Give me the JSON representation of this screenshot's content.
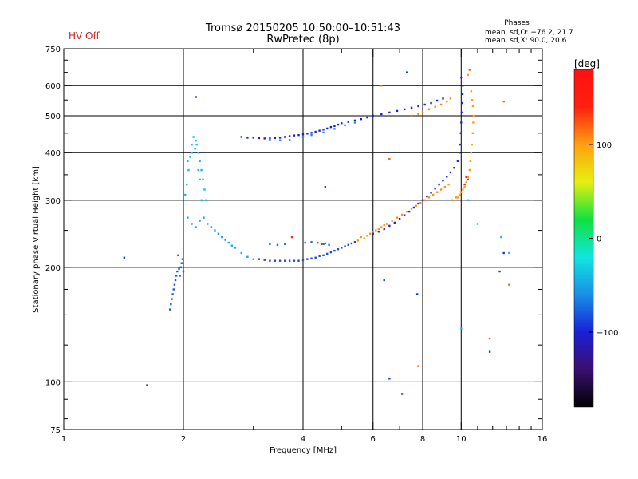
{
  "chart_data": {
    "type": "scatter",
    "title_line1": "Tromsø 20150205 10:50:00–10:51:43",
    "title_line2": "RwPretec (8p)",
    "status_label": "HV Off",
    "stats_header": "Phases",
    "stats_line1": "mean, sd,O: −76.2, 21.7",
    "stats_line2": "mean, sd,X:  90.0, 20.6",
    "xlabel": "Frequency [MHz]",
    "ylabel": "Stationary phase Virtual Height [km]",
    "x_scale": "log",
    "y_scale": "log",
    "xlim": [
      1,
      16
    ],
    "ylim": [
      75,
      750
    ],
    "x_ticks": [
      {
        "value": 1,
        "label": "1"
      },
      {
        "value": 2,
        "label": "2"
      },
      {
        "value": 4,
        "label": "4"
      },
      {
        "value": 6,
        "label": "6"
      },
      {
        "value": 8,
        "label": "8"
      },
      {
        "value": 10,
        "label": "10"
      },
      {
        "value": 16,
        "label": "16"
      }
    ],
    "x_grid": [
      2,
      4,
      6,
      8,
      10
    ],
    "y_ticks": [
      {
        "value": 75,
        "label": "75"
      },
      {
        "value": 100,
        "label": "100"
      },
      {
        "value": 200,
        "label": "200"
      },
      {
        "value": 300,
        "label": "300"
      },
      {
        "value": 400,
        "label": "400"
      },
      {
        "value": 500,
        "label": "500"
      },
      {
        "value": 600,
        "label": "600"
      },
      {
        "value": 750,
        "label": "750"
      }
    ],
    "y_grid": [
      100,
      200,
      300,
      400,
      500,
      600
    ],
    "colorbar": {
      "label": "[deg]",
      "range": [
        -180,
        180
      ],
      "ticks": [
        {
          "value": 100,
          "label": "100"
        },
        {
          "value": 0,
          "label": "0"
        },
        {
          "value": -100,
          "label": "−100"
        }
      ]
    },
    "colors": {
      "status": "#cc2222",
      "grid": "#000000",
      "cb_stops": [
        "#000000",
        "#3a0f6e",
        "#1a1fd6",
        "#1a8fe6",
        "#10e6e0",
        "#10e040",
        "#e6f010",
        "#ffa010",
        "#ff2010",
        "#ff1010"
      ]
    },
    "series": [
      {
        "phase": -80,
        "points": [
          [
            1.85,
            155
          ],
          [
            1.86,
            160
          ],
          [
            1.87,
            165
          ],
          [
            1.88,
            170
          ],
          [
            1.89,
            175
          ],
          [
            1.9,
            180
          ],
          [
            1.91,
            185
          ],
          [
            1.92,
            190
          ],
          [
            1.93,
            195
          ],
          [
            1.95,
            198
          ],
          [
            1.97,
            200
          ],
          [
            1.98,
            205
          ],
          [
            2.0,
            195
          ],
          [
            1.99,
            210
          ],
          [
            1.94,
            215
          ],
          [
            1.96,
            190
          ]
        ]
      },
      {
        "phase": -40,
        "points": [
          [
            2.02,
            310
          ],
          [
            2.04,
            330
          ],
          [
            2.06,
            360
          ],
          [
            2.08,
            390
          ],
          [
            2.1,
            420
          ],
          [
            2.12,
            440
          ],
          [
            2.15,
            430
          ],
          [
            2.18,
            400
          ],
          [
            2.2,
            380
          ],
          [
            2.22,
            360
          ],
          [
            2.24,
            340
          ],
          [
            2.26,
            320
          ],
          [
            2.28,
            300
          ],
          [
            2.05,
            380
          ],
          [
            2.1,
            400
          ],
          [
            2.14,
            410
          ],
          [
            2.16,
            420
          ],
          [
            2.18,
            360
          ],
          [
            2.2,
            340
          ],
          [
            2.22,
            300
          ]
        ]
      },
      {
        "phase": -50,
        "points": [
          [
            2.05,
            270
          ],
          [
            2.1,
            260
          ],
          [
            2.15,
            255
          ],
          [
            2.2,
            265
          ],
          [
            2.3,
            260
          ],
          [
            2.4,
            250
          ],
          [
            2.5,
            240
          ],
          [
            2.6,
            232
          ],
          [
            2.7,
            225
          ],
          [
            2.8,
            218
          ],
          [
            2.9,
            213
          ],
          [
            3.0,
            210
          ],
          [
            2.45,
            245
          ],
          [
            2.55,
            236
          ],
          [
            2.65,
            228
          ],
          [
            2.35,
            255
          ],
          [
            2.25,
            270
          ]
        ]
      },
      {
        "phase": -85,
        "points": [
          [
            3.1,
            210
          ],
          [
            3.2,
            209
          ],
          [
            3.3,
            208
          ],
          [
            3.4,
            208
          ],
          [
            3.5,
            208
          ],
          [
            3.6,
            208
          ],
          [
            3.7,
            208
          ],
          [
            3.8,
            208
          ],
          [
            3.9,
            208
          ],
          [
            4.0,
            209
          ],
          [
            4.1,
            210
          ],
          [
            4.2,
            211
          ],
          [
            4.3,
            212
          ],
          [
            4.4,
            214
          ],
          [
            4.5,
            215
          ],
          [
            4.6,
            217
          ],
          [
            4.7,
            219
          ],
          [
            4.8,
            221
          ],
          [
            4.9,
            223
          ],
          [
            5.0,
            225
          ],
          [
            5.1,
            227
          ],
          [
            5.2,
            229
          ],
          [
            5.3,
            231
          ],
          [
            5.4,
            233
          ]
        ]
      },
      {
        "phase": -70,
        "points": [
          [
            3.3,
            230
          ],
          [
            3.45,
            229
          ],
          [
            3.6,
            230
          ],
          [
            4.05,
            232
          ],
          [
            4.2,
            233
          ],
          [
            4.5,
            230
          ],
          [
            4.65,
            229
          ]
        ]
      },
      {
        "phase": 140,
        "points": [
          [
            3.75,
            240
          ],
          [
            4.35,
            232
          ],
          [
            4.45,
            230
          ],
          [
            4.55,
            231
          ]
        ]
      },
      {
        "phase": 105,
        "points": [
          [
            5.5,
            235
          ],
          [
            5.6,
            240
          ],
          [
            5.7,
            238
          ],
          [
            5.8,
            242
          ],
          [
            5.9,
            245
          ],
          [
            6.0,
            248
          ],
          [
            6.1,
            250
          ],
          [
            6.2,
            252
          ],
          [
            6.3,
            255
          ],
          [
            6.4,
            258
          ],
          [
            6.5,
            260
          ],
          [
            6.7,
            265
          ],
          [
            6.9,
            270
          ],
          [
            7.1,
            275
          ],
          [
            7.3,
            280
          ],
          [
            7.5,
            285
          ],
          [
            7.7,
            290
          ],
          [
            7.9,
            295
          ],
          [
            8.1,
            300
          ],
          [
            8.3,
            305
          ],
          [
            8.5,
            310
          ],
          [
            8.7,
            315
          ],
          [
            8.9,
            320
          ],
          [
            9.1,
            325
          ],
          [
            9.3,
            330
          ],
          [
            9.5,
            300
          ],
          [
            9.7,
            305
          ],
          [
            9.9,
            310
          ]
        ]
      },
      {
        "phase": -95,
        "points": [
          [
            6.0,
            245
          ],
          [
            6.2,
            248
          ],
          [
            6.4,
            252
          ],
          [
            6.6,
            257
          ],
          [
            6.8,
            262
          ],
          [
            7.0,
            268
          ],
          [
            7.2,
            274
          ],
          [
            7.4,
            280
          ],
          [
            7.6,
            287
          ],
          [
            7.8,
            294
          ],
          [
            8.0,
            300
          ],
          [
            8.2,
            307
          ],
          [
            8.4,
            314
          ],
          [
            8.6,
            322
          ],
          [
            8.8,
            330
          ],
          [
            9.0,
            338
          ],
          [
            9.2,
            346
          ],
          [
            9.4,
            355
          ],
          [
            9.6,
            365
          ],
          [
            9.8,
            380
          ],
          [
            9.9,
            400
          ],
          [
            9.95,
            420
          ],
          [
            9.98,
            450
          ],
          [
            10.0,
            480
          ],
          [
            10.02,
            510
          ],
          [
            10.05,
            540
          ],
          [
            10.08,
            570
          ],
          [
            10.1,
            600
          ]
        ]
      },
      {
        "phase": 100,
        "points": [
          [
            9.8,
            305
          ],
          [
            9.9,
            310
          ],
          [
            10.0,
            315
          ],
          [
            10.1,
            320
          ],
          [
            10.2,
            325
          ],
          [
            10.3,
            335
          ],
          [
            10.4,
            345
          ],
          [
            10.5,
            360
          ],
          [
            10.55,
            380
          ],
          [
            10.6,
            400
          ],
          [
            10.65,
            420
          ],
          [
            10.7,
            450
          ],
          [
            10.72,
            480
          ],
          [
            10.75,
            500
          ],
          [
            10.7,
            530
          ],
          [
            10.65,
            550
          ],
          [
            10.6,
            580
          ],
          [
            10.4,
            640
          ]
        ]
      },
      {
        "phase": 150,
        "points": [
          [
            10.3,
            345
          ],
          [
            10.4,
            340
          ],
          [
            10.2,
            330
          ]
        ]
      },
      {
        "phase": -100,
        "points": [
          [
            2.8,
            440
          ],
          [
            2.9,
            438
          ],
          [
            3.0,
            438
          ],
          [
            3.1,
            437
          ],
          [
            3.2,
            436
          ],
          [
            3.3,
            436
          ],
          [
            3.4,
            437
          ],
          [
            3.5,
            438
          ],
          [
            3.6,
            440
          ],
          [
            3.7,
            442
          ],
          [
            3.8,
            444
          ],
          [
            3.9,
            445
          ],
          [
            4.0,
            447
          ],
          [
            4.1,
            449
          ],
          [
            4.2,
            451
          ],
          [
            4.3,
            454
          ],
          [
            4.4,
            457
          ],
          [
            4.5,
            460
          ],
          [
            4.6,
            463
          ],
          [
            4.7,
            467
          ],
          [
            4.8,
            470
          ],
          [
            4.9,
            474
          ],
          [
            5.0,
            478
          ],
          [
            5.2,
            482
          ],
          [
            5.4,
            486
          ],
          [
            5.6,
            490
          ],
          [
            5.8,
            495
          ],
          [
            6.0,
            500
          ],
          [
            6.3,
            505
          ],
          [
            6.6,
            510
          ],
          [
            6.9,
            515
          ],
          [
            7.2,
            520
          ],
          [
            7.5,
            525
          ],
          [
            7.8,
            530
          ],
          [
            8.1,
            535
          ],
          [
            8.4,
            540
          ],
          [
            8.7,
            548
          ],
          [
            9.0,
            555
          ]
        ]
      },
      {
        "phase": -60,
        "points": [
          [
            3.3,
            432
          ],
          [
            3.5,
            431
          ],
          [
            3.7,
            432
          ],
          [
            4.0,
            440
          ],
          [
            4.2,
            445
          ],
          [
            4.5,
            452
          ],
          [
            4.8,
            462
          ],
          [
            5.1,
            472
          ],
          [
            5.4,
            480
          ]
        ]
      },
      {
        "phase": 110,
        "points": [
          [
            7.5,
            500
          ],
          [
            7.8,
            505
          ],
          [
            8.0,
            510
          ],
          [
            8.3,
            520
          ],
          [
            8.6,
            528
          ],
          [
            8.9,
            535
          ],
          [
            9.2,
            545
          ],
          [
            9.4,
            555
          ]
        ]
      },
      {
        "phase": -90,
        "points": [
          [
            1.42,
            212
          ],
          [
            1.62,
            98
          ],
          [
            2.15,
            560
          ],
          [
            4.55,
            325
          ],
          [
            6.4,
            185
          ],
          [
            6.6,
            102
          ],
          [
            7.1,
            93
          ],
          [
            7.3,
            650
          ],
          [
            7.75,
            170
          ],
          [
            10.0,
            630
          ],
          [
            11.8,
            120
          ],
          [
            12.5,
            195
          ],
          [
            12.8,
            218
          ]
        ]
      },
      {
        "phase": -40,
        "points": [
          [
            10.4,
            300
          ],
          [
            11.0,
            260
          ],
          [
            12.6,
            240
          ],
          [
            13.2,
            218
          ],
          [
            10.0,
            138
          ]
        ]
      },
      {
        "phase": 120,
        "points": [
          [
            6.3,
            600
          ],
          [
            7.8,
            110
          ],
          [
            10.5,
            660
          ],
          [
            11.8,
            130
          ],
          [
            13.2,
            180
          ],
          [
            12.8,
            545
          ],
          [
            6.6,
            385
          ]
        ]
      }
    ]
  }
}
